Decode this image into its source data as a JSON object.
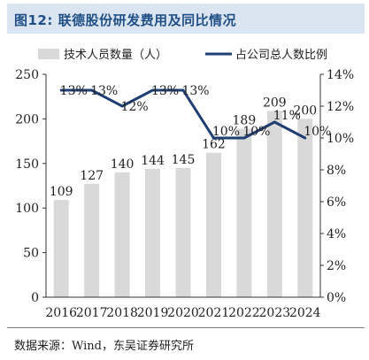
{
  "figure": {
    "label": "图12:",
    "title": "联德股份研发费用及同比情况",
    "source": "数据来源：Wind，东吴证券研究所"
  },
  "colors": {
    "bar": "#d9d9d9",
    "line": "#1f3f73",
    "title_bg": "#dbe5f1",
    "title_text": "#1f4f86"
  },
  "chart_data": {
    "type": "bar",
    "categories": [
      "2016",
      "2017",
      "2018",
      "2019",
      "2020",
      "2021",
      "2022",
      "2023",
      "2024"
    ],
    "series": [
      {
        "name": "技术人员数量（人）",
        "type": "bar",
        "axis": "left",
        "values": [
          109,
          127,
          140,
          144,
          145,
          162,
          189,
          209,
          200
        ]
      },
      {
        "name": "占公司总人数比例",
        "type": "line",
        "axis": "right",
        "values": [
          13,
          13,
          12,
          13,
          13,
          10,
          10,
          11,
          10
        ]
      }
    ],
    "bar_labels": [
      "109",
      "127",
      "140",
      "144",
      "145",
      "162",
      "189",
      "209",
      "200"
    ],
    "line_labels": [
      "13%",
      "13%",
      "12%",
      "13%",
      "13%",
      "10%",
      "10%",
      "11%",
      "10%"
    ],
    "ylim_left": [
      0,
      250
    ],
    "yticks_left": [
      "0",
      "50",
      "100",
      "150",
      "200",
      "250"
    ],
    "ylim_right": [
      0,
      14
    ],
    "yticks_right": [
      "0%",
      "2%",
      "4%",
      "6%",
      "8%",
      "10%",
      "12%",
      "14%"
    ],
    "legend_position": "top",
    "grid": false
  }
}
